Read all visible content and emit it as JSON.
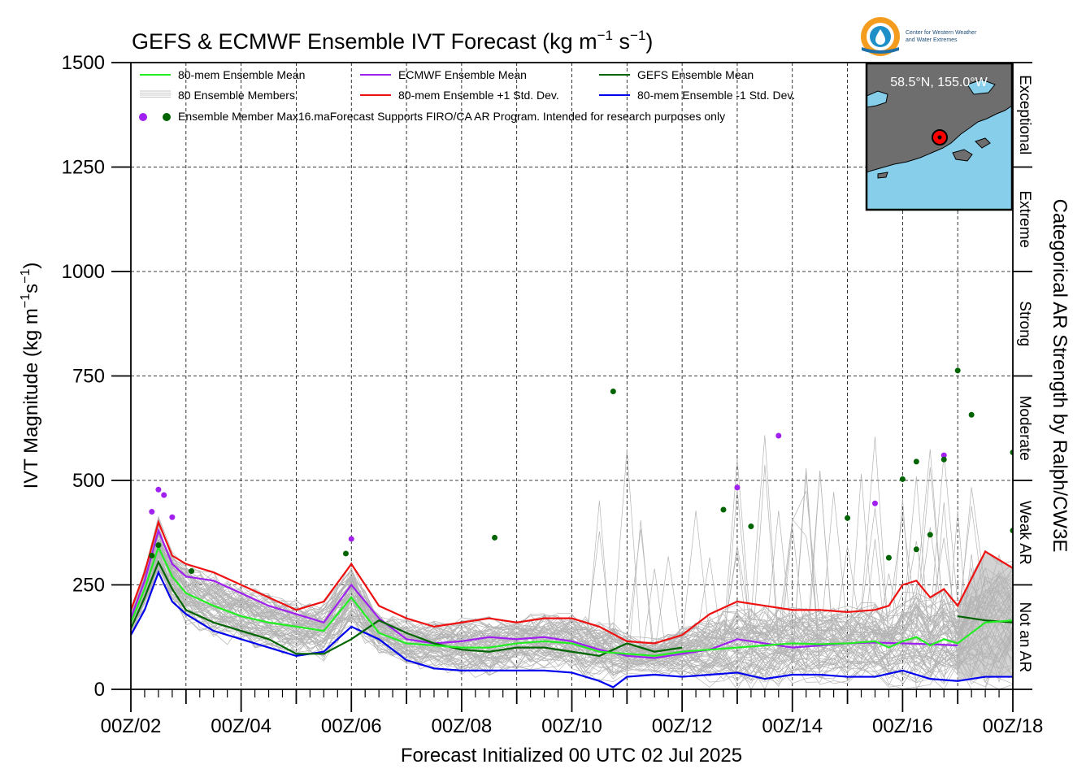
{
  "chart_data": {
    "type": "line",
    "title": "GEFS & ECMWF Ensemble IVT Forecast (kg m",
    "title_unit_exp1": "−1",
    "title_unit_mid": " s",
    "title_unit_exp2": "−1",
    "title_unit_end": ")",
    "xlabel": "Forecast Initialized 00 UTC 02 Jul 2025",
    "ylabel_main": "IVT Magnitude (kg m",
    "ylabel_exp1": "−1",
    "ylabel_mid": "s",
    "ylabel_exp2": "−1",
    "ylabel_end": ")",
    "right_label": "Categorical AR Strength by Ralph/CW3E",
    "ylim": [
      0,
      1500
    ],
    "xlim_days": [
      2,
      18
    ],
    "yticks": [
      0,
      250,
      500,
      750,
      1000,
      1250,
      1500
    ],
    "ytick_labels": [
      "0",
      "250",
      "500",
      "750",
      "1000",
      "1250",
      "1500"
    ],
    "xtick_labels": [
      "00Z/02",
      "00Z/04",
      "00Z/06",
      "00Z/08",
      "00Z/10",
      "00Z/12",
      "00Z/14",
      "00Z/16",
      "00Z/18"
    ],
    "xtick_days": [
      2,
      4,
      6,
      8,
      10,
      12,
      14,
      16,
      18
    ],
    "grid": true,
    "categories": [
      {
        "label": "Not an AR",
        "from": 0,
        "to": 250
      },
      {
        "label": "Weak AR",
        "from": 250,
        "to": 500
      },
      {
        "label": "Moderate",
        "from": 500,
        "to": 750
      },
      {
        "label": "Strong",
        "from": 750,
        "to": 1000
      },
      {
        "label": "Extreme",
        "from": 1000,
        "to": 1250
      },
      {
        "label": "Exceptional",
        "from": 1250,
        "to": 1500
      }
    ],
    "legend": {
      "placement": "top-left",
      "mean80": "80-mem Ensemble Mean",
      "ecmwf_mean": "ECMWF Ensemble Mean",
      "gefs_mean": "GEFS Ensemble Mean",
      "members": "80 Ensemble Members",
      "plus_sd": "80-mem Ensemble +1 Std. Dev.",
      "minus_sd": "80-mem Ensemble -1 Std. Dev.",
      "max_text": "Ensemble Member Max16.maForecast Supports FIRO/CA AR Program. Intended for research purposes only"
    },
    "inset_location": "58.5°N, 155.0°W",
    "colors": {
      "mean80": "#22ee22",
      "ecmwf": "#a020f0",
      "gefs": "#006400",
      "plus_sd": "#ee1111",
      "minus_sd": "#0000ee",
      "members": "#b4b4b4",
      "spread_fill": "#d3d3d3",
      "ocean": "#87ceeb",
      "land": "#6e6e6e"
    },
    "series": [
      {
        "name": "80-mem Ensemble Mean",
        "x": [
          2,
          2.25,
          2.5,
          2.75,
          3,
          3.5,
          4,
          4.5,
          5,
          5.5,
          6,
          6.5,
          7,
          7.5,
          8,
          8.5,
          9,
          9.5,
          10,
          10.5,
          11,
          11.5,
          12,
          12.5,
          13,
          13.5,
          14,
          14.5,
          15,
          15.5,
          15.75,
          16,
          16.25,
          16.5,
          16.75,
          17,
          17.5,
          18
        ],
        "y": [
          160,
          240,
          340,
          270,
          230,
          200,
          175,
          160,
          150,
          140,
          220,
          135,
          110,
          105,
          100,
          100,
          110,
          115,
          110,
          90,
          85,
          80,
          90,
          95,
          100,
          105,
          110,
          108,
          110,
          115,
          100,
          115,
          125,
          105,
          120,
          110,
          160,
          165
        ]
      },
      {
        "name": "ECMWF Ensemble Mean",
        "x": [
          2,
          2.25,
          2.5,
          2.75,
          3,
          3.5,
          4,
          4.5,
          5,
          5.5,
          6,
          6.5,
          7,
          7.5,
          8,
          8.5,
          9,
          9.5,
          10,
          10.5,
          11,
          11.5,
          12,
          12.5,
          13,
          13.5,
          14,
          14.5,
          15,
          15.5,
          16,
          16.5,
          17
        ],
        "y": [
          170,
          260,
          380,
          300,
          270,
          260,
          230,
          200,
          180,
          160,
          250,
          170,
          120,
          110,
          115,
          125,
          120,
          125,
          115,
          95,
          80,
          75,
          85,
          95,
          120,
          110,
          100,
          105,
          110,
          112,
          110,
          108,
          105
        ]
      },
      {
        "name": "GEFS Ensemble Mean",
        "x": [
          2,
          2.25,
          2.5,
          2.75,
          3,
          3.5,
          4,
          4.5,
          5,
          5.5,
          6,
          6.5,
          7,
          7.5,
          8,
          8.5,
          9,
          9.5,
          10,
          10.5,
          11,
          11.5,
          12
        ],
        "y": [
          145,
          220,
          305,
          240,
          190,
          160,
          140,
          120,
          85,
          85,
          120,
          165,
          135,
          110,
          95,
          90,
          100,
          100,
          90,
          80,
          110,
          90,
          100
        ]
      },
      {
        "name": "GEFS Ensemble Mean (late)",
        "x": [
          17,
          17.5,
          18
        ],
        "y": [
          175,
          165,
          160
        ]
      },
      {
        "name": "80-mem Ensemble +1 Std. Dev.",
        "x": [
          2,
          2.25,
          2.5,
          2.75,
          3,
          3.5,
          4,
          4.5,
          5,
          5.5,
          6,
          6.5,
          7,
          7.5,
          8,
          8.5,
          9,
          9.5,
          10,
          10.5,
          11,
          11.5,
          12,
          12.5,
          13,
          13.5,
          14,
          14.5,
          15,
          15.5,
          15.75,
          16,
          16.25,
          16.5,
          16.75,
          17,
          17.5,
          18
        ],
        "y": [
          190,
          280,
          400,
          320,
          300,
          280,
          250,
          220,
          190,
          210,
          300,
          200,
          170,
          150,
          160,
          170,
          160,
          170,
          170,
          150,
          115,
          110,
          130,
          180,
          210,
          200,
          190,
          190,
          185,
          190,
          200,
          250,
          260,
          220,
          240,
          200,
          330,
          290
        ]
      },
      {
        "name": "80-mem Ensemble -1 Std. Dev.",
        "x": [
          2,
          2.25,
          2.5,
          2.75,
          3,
          3.5,
          4,
          4.5,
          5,
          5.5,
          6,
          6.5,
          7,
          7.5,
          8,
          8.5,
          9,
          9.5,
          10,
          10.5,
          10.75,
          11,
          11.5,
          12,
          12.5,
          13,
          13.5,
          14,
          14.5,
          15,
          15.5,
          16,
          16.5,
          17,
          17.5,
          18
        ],
        "y": [
          130,
          190,
          280,
          210,
          180,
          140,
          120,
          100,
          80,
          90,
          150,
          120,
          70,
          50,
          45,
          45,
          45,
          45,
          40,
          20,
          5,
          30,
          35,
          30,
          35,
          40,
          25,
          35,
          35,
          30,
          30,
          45,
          25,
          20,
          30,
          30
        ]
      }
    ],
    "max_points_ecmwf": [
      {
        "x": 2.38,
        "y": 425
      },
      {
        "x": 2.5,
        "y": 478
      },
      {
        "x": 2.6,
        "y": 465
      },
      {
        "x": 2.75,
        "y": 412
      },
      {
        "x": 6.0,
        "y": 360
      },
      {
        "x": 13.0,
        "y": 483
      },
      {
        "x": 13.75,
        "y": 607
      },
      {
        "x": 15.5,
        "y": 445
      },
      {
        "x": 16.75,
        "y": 560
      }
    ],
    "max_points_gefs": [
      {
        "x": 2.38,
        "y": 320
      },
      {
        "x": 2.5,
        "y": 345
      },
      {
        "x": 3.1,
        "y": 283
      },
      {
        "x": 5.9,
        "y": 325
      },
      {
        "x": 8.6,
        "y": 363
      },
      {
        "x": 10.75,
        "y": 713
      },
      {
        "x": 12.75,
        "y": 430
      },
      {
        "x": 13.25,
        "y": 390
      },
      {
        "x": 15.0,
        "y": 410
      },
      {
        "x": 15.75,
        "y": 315
      },
      {
        "x": 16.0,
        "y": 503
      },
      {
        "x": 16.25,
        "y": 335
      },
      {
        "x": 16.25,
        "y": 545
      },
      {
        "x": 16.5,
        "y": 370
      },
      {
        "x": 16.75,
        "y": 550
      },
      {
        "x": 17.0,
        "y": 763
      },
      {
        "x": 17.25,
        "y": 657
      },
      {
        "x": 18.0,
        "y": 380
      },
      {
        "x": 18.0,
        "y": 567
      }
    ]
  }
}
